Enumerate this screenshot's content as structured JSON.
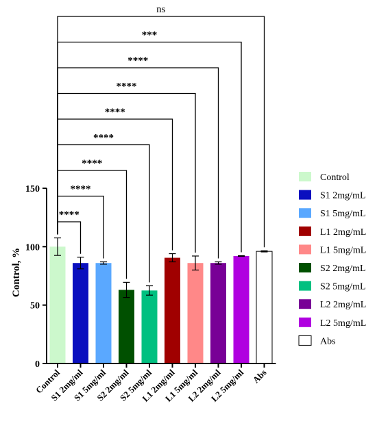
{
  "chart_data": {
    "type": "bar",
    "ylabel": "Control, %",
    "ylim": [
      0,
      150
    ],
    "yticks": [
      0,
      50,
      100,
      150
    ],
    "categories": [
      "Control",
      "S1 2mg/ml",
      "S1 5mg/ml",
      "S2 2mg/ml",
      "S2 5mg/ml",
      "L1 2mg/ml",
      "L1 5mg/ml",
      "L2 2mg/ml",
      "L2 5mg/ml",
      "Abs"
    ],
    "values": [
      100,
      86,
      86,
      63,
      62.5,
      90.5,
      86,
      86,
      92,
      96
    ],
    "errors": [
      7.5,
      5,
      1,
      6.5,
      4,
      3.5,
      6,
      1,
      0.3,
      0.5
    ],
    "colors": [
      "#ccf8cc",
      "#0a0fbf",
      "#5aa8ff",
      "#005000",
      "#00c080",
      "#a00000",
      "#ff8888",
      "#780096",
      "#b000e0",
      "#ffffff"
    ],
    "legend": {
      "position": "right",
      "entries": [
        "Control",
        "S1 2mg/mL",
        "S1 5mg/mL",
        "L1 2mg/mL",
        "L1 5mg/mL",
        "S2 2mg/mL",
        "S2 5mg/mL",
        "L2 2mg/mL",
        "L2 5mg/mL",
        "Abs"
      ],
      "colors": [
        "#ccf8cc",
        "#0a0fbf",
        "#5aa8ff",
        "#a00000",
        "#ff8888",
        "#005000",
        "#00c080",
        "#780096",
        "#b000e0",
        "#ffffff"
      ]
    },
    "comparisons": [
      {
        "target": 1,
        "label": "****"
      },
      {
        "target": 2,
        "label": "****"
      },
      {
        "target": 3,
        "label": "****"
      },
      {
        "target": 4,
        "label": "****"
      },
      {
        "target": 5,
        "label": "****"
      },
      {
        "target": 6,
        "label": "****"
      },
      {
        "target": 7,
        "label": "****"
      },
      {
        "target": 8,
        "label": "***"
      },
      {
        "target": 9,
        "label": "ns"
      }
    ],
    "grid": false
  }
}
